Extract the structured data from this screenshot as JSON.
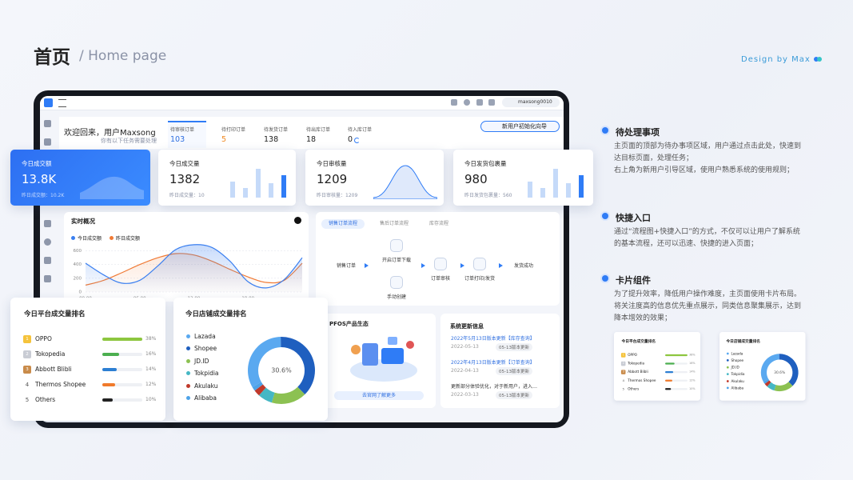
{
  "header": {
    "title": "首页",
    "subtitle": "/ Home page",
    "credit": "Design by Max"
  },
  "topbar": {
    "user": "maxsong0010"
  },
  "welcome": {
    "greeting": "欢迎回来，用户Maxsong",
    "hint": "你有以下任务需要处理",
    "guide_button": "新用户初始化向导"
  },
  "tasks": [
    {
      "label": "待审核订单",
      "count": 103
    },
    {
      "label": "待打印订单",
      "count": 5
    },
    {
      "label": "待发货订单",
      "count": 138
    },
    {
      "label": "待出库订单",
      "count": 18
    },
    {
      "label": "待入库订单",
      "count": 0
    }
  ],
  "stat_cards": [
    {
      "label": "今日成交额",
      "value": "13.8K",
      "previous": "昨日成交额：10.2K"
    },
    {
      "label": "今日成交量",
      "value": 1382,
      "previous": "昨日成交量：10"
    },
    {
      "label": "今日审核量",
      "value": 1209,
      "previous": "昨日审核量：1209"
    },
    {
      "label": "今日发货包裹量",
      "value": 980,
      "previous": "昨日发货包裹量：560"
    }
  ],
  "chart_data": [
    {
      "type": "line",
      "title": "实时概况",
      "x": [
        0,
        2,
        4,
        6,
        8,
        10,
        12,
        14,
        16,
        18,
        20,
        22,
        24
      ],
      "xlim": [
        0,
        24
      ],
      "xticks": [
        {
          "value": 0,
          "label": "00:00"
        },
        {
          "value": 6,
          "label": "06:00"
        },
        {
          "value": 12,
          "label": "12:00"
        },
        {
          "value": 18,
          "label": "18:00"
        }
      ],
      "ylim": [
        0,
        700
      ],
      "yticks": [
        0,
        200,
        400,
        600
      ],
      "grid": true,
      "series": [
        {
          "name": "今日成交额",
          "color": "#3a7ff0",
          "values": [
            420,
            250,
            130,
            170,
            380,
            620,
            690,
            650,
            450,
            150,
            60,
            180,
            500
          ]
        },
        {
          "name": "昨日成交额",
          "color": "#f07a35",
          "values": [
            100,
            170,
            280,
            400,
            500,
            560,
            540,
            450,
            330,
            220,
            140,
            170,
            420
          ]
        }
      ]
    },
    {
      "type": "bar",
      "orientation": "horizontal",
      "title": "今日平台成交量排名",
      "ranks": [
        1,
        2,
        3,
        4,
        5
      ],
      "categories": [
        "OPPO",
        "Tokopedia",
        "Abbott Blibli",
        "Thermos Shopee",
        "Others"
      ],
      "values": [
        38,
        16,
        14,
        12,
        10
      ],
      "value_labels": [
        "38%",
        "16%",
        "14%",
        "12%",
        "10%"
      ],
      "colors": [
        "#8dc63f",
        "#4caf50",
        "#2d7fd3",
        "#f07a2b",
        "#222222"
      ],
      "xlim": [
        0,
        38
      ]
    },
    {
      "type": "pie",
      "donut": true,
      "title": "今日店铺成交量排名",
      "categories": [
        "Lazada",
        "Shopee",
        "JD.ID",
        "Tokpidia",
        "Akulaku",
        "Alibaba"
      ],
      "values": [
        33,
        38,
        17,
        7,
        3,
        2
      ],
      "colors": [
        "#5aa9f0",
        "#1f5fbf",
        "#8cc152",
        "#45b7c4",
        "#c0392b",
        "#4ea3e8"
      ],
      "center_label": "30.6%"
    }
  ],
  "flow": {
    "tabs": [
      "销售订单流程",
      "售后订单流程",
      "库存流程"
    ],
    "steps": [
      "销售订单",
      "开启订单下载",
      "手动创建",
      "订单审核",
      "订单打印/发货",
      "发货成功"
    ]
  },
  "ecosystem": {
    "title": "PFOS产品生态",
    "link": "去官网了解更多"
  },
  "updates": {
    "title": "系统更新信息",
    "items": [
      {
        "text": "2022年5月13日版本更新【库存查询】",
        "date": "2022-05-13",
        "tag": "05-13版本更新"
      },
      {
        "text": "2022年4月13日版本更新【订单查询】",
        "date": "2022-04-13",
        "tag": "05-13版本更新"
      },
      {
        "text": "更新部分体验优化，对于新用户，进入…",
        "date": "2022-03-13",
        "tag": "05-13版本更新"
      }
    ]
  },
  "notes": [
    {
      "title": "待处理事项",
      "lines": [
        "主页面的顶部为待办事项区域，用户通过点击此处，快速到达目标页面，处理任务；",
        "右上角为新用户引导区域，使用户熟悉系统的使用规则；"
      ]
    },
    {
      "title": "快捷入口",
      "lines": [
        "通过“流程图+快捷入口”的方式，不仅可以让用户了解系统的基本流程，还可以迅速、快捷的进入页面；"
      ]
    },
    {
      "title": "卡片组件",
      "lines": [
        "为了提升效率，降低用户操作难度，主页面使用卡片布局。将关注度高的信息优先重点展示，同类信息聚集展示，达到降本增效的效果；"
      ]
    }
  ]
}
